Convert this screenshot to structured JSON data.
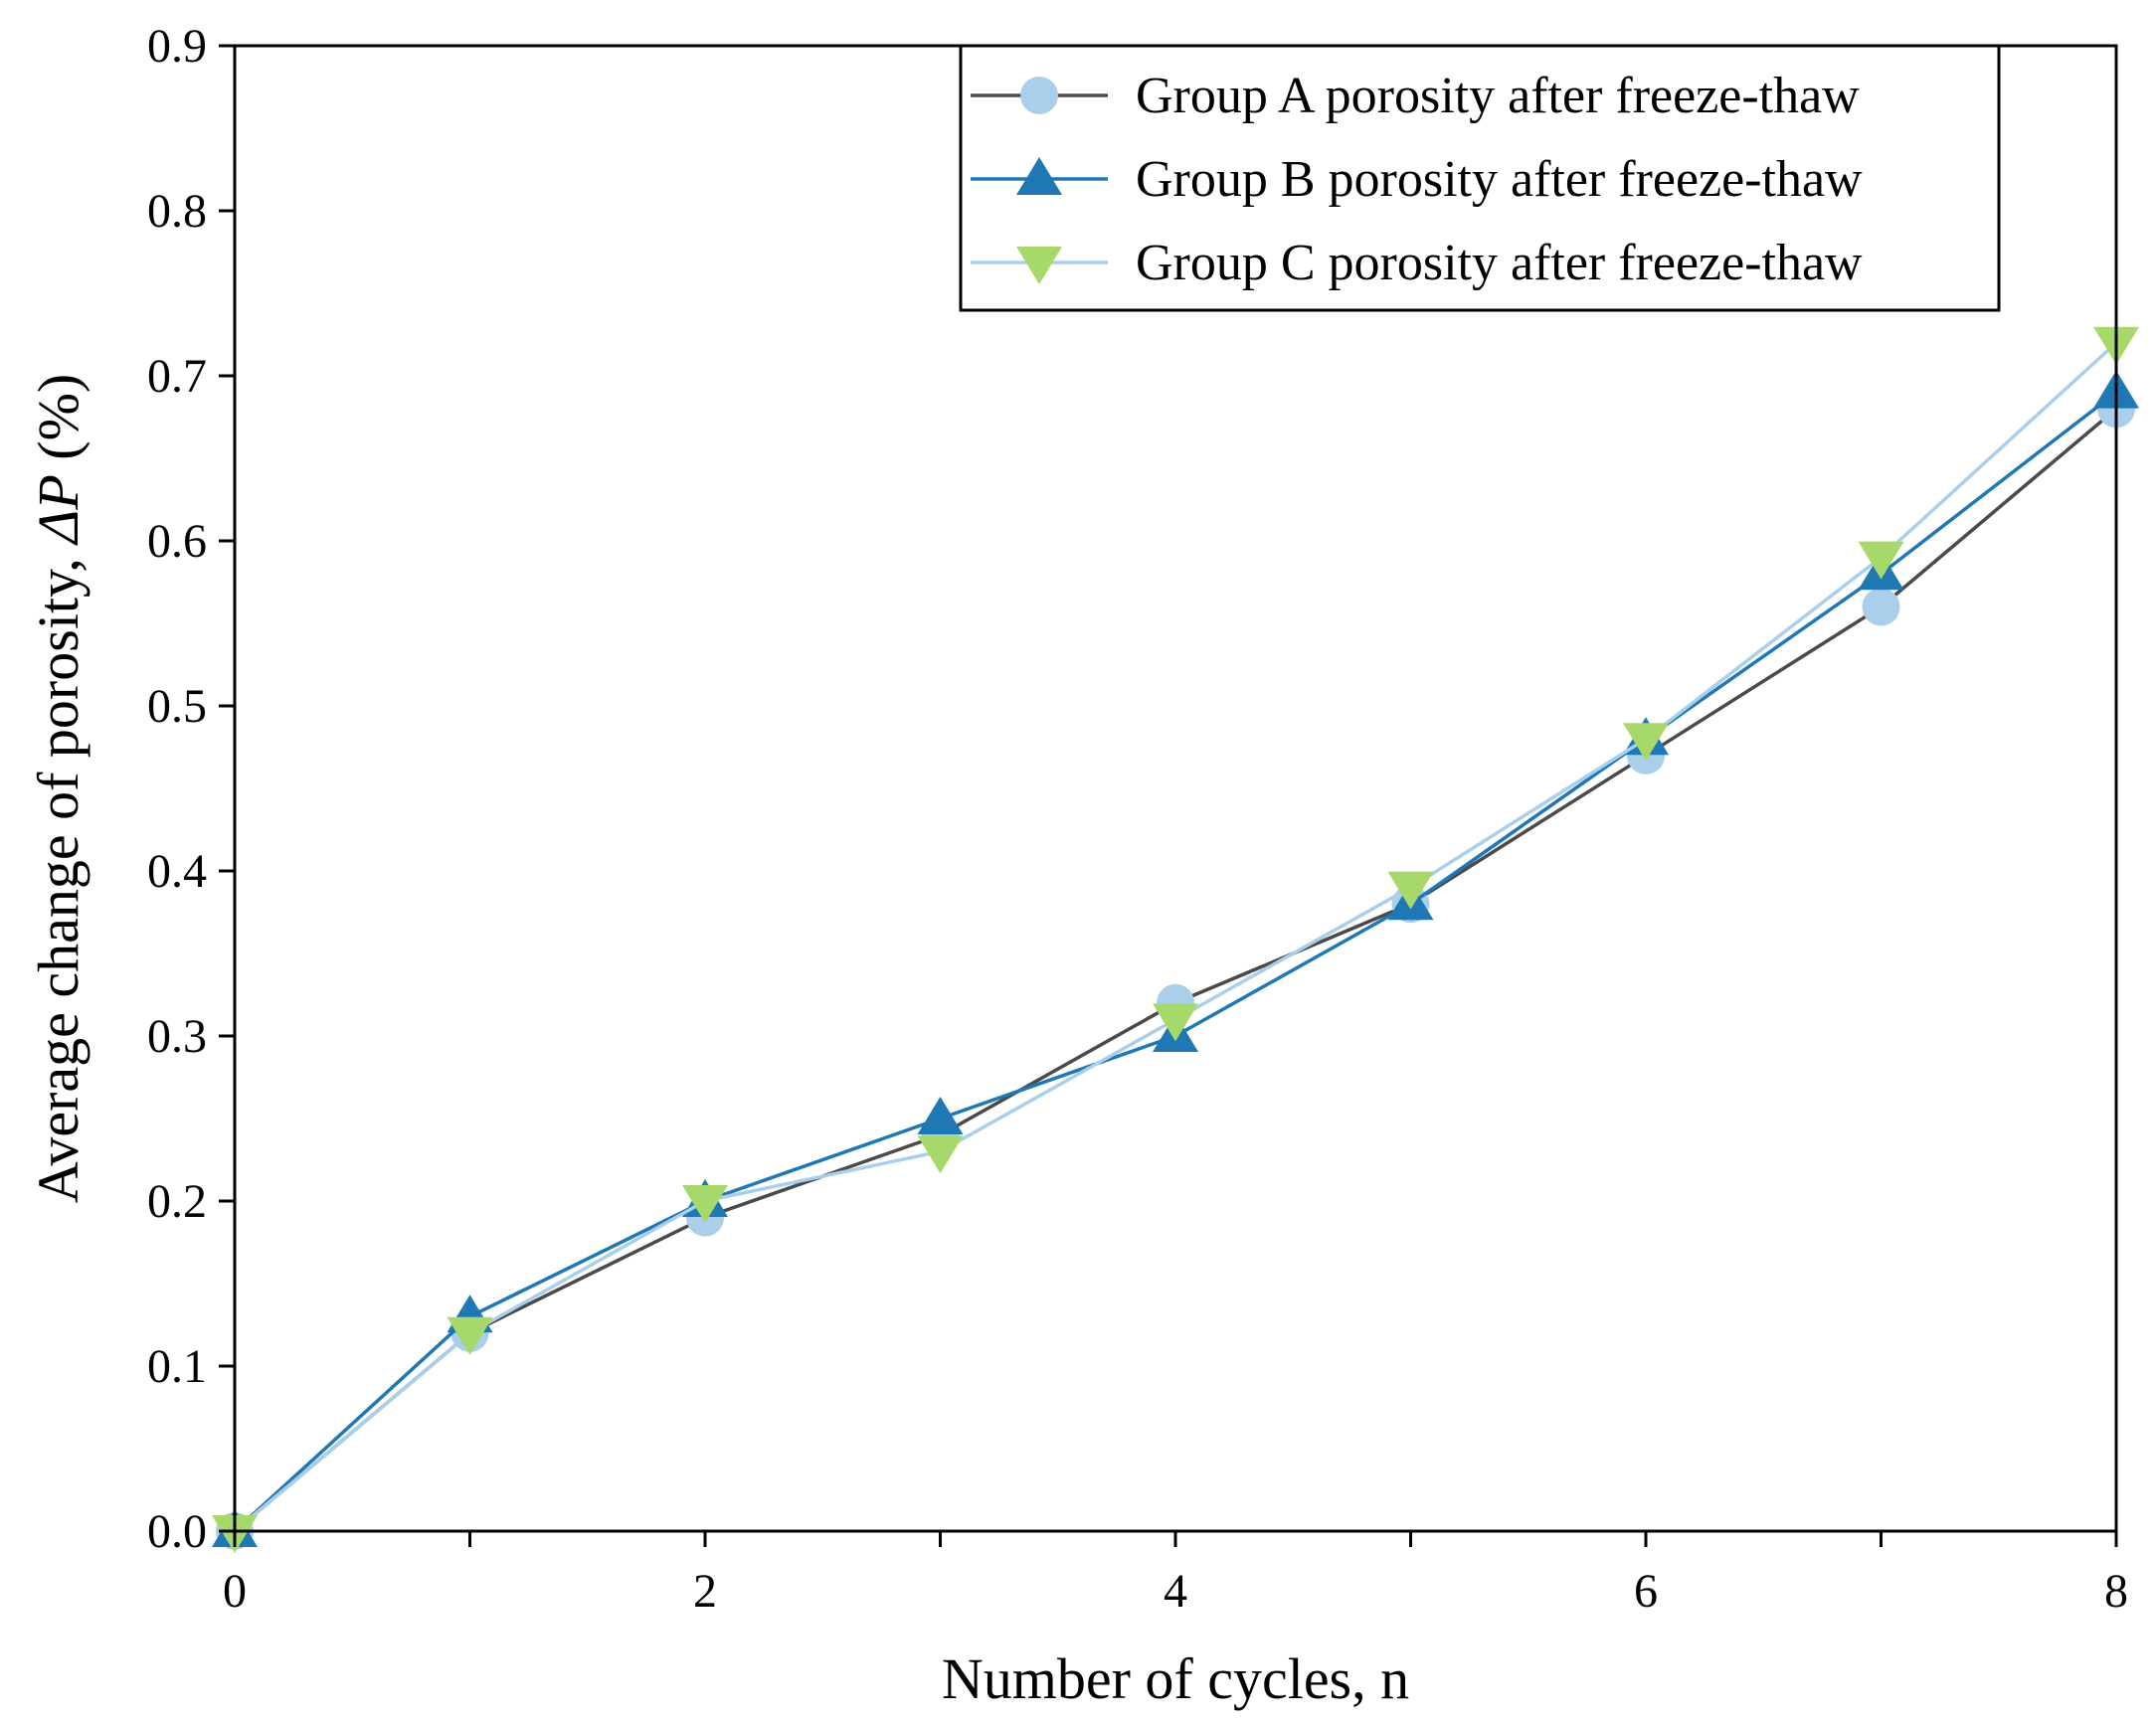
{
  "chart_data": {
    "type": "line",
    "xlabel": "Number of cycles, n",
    "ylabel": "Average change of porosity, ",
    "ylabel_symbol": "ΔP",
    "ylabel_unit": " (%)",
    "xlim": [
      0,
      8
    ],
    "ylim": [
      0,
      0.9
    ],
    "xticks": [
      0,
      1,
      2,
      3,
      4,
      5,
      6,
      7,
      8
    ],
    "xtick_labels": [
      "0",
      "2",
      "4",
      "6",
      "8"
    ],
    "xtick_label_values": [
      0,
      2,
      4,
      6,
      8
    ],
    "yticks": [
      0.0,
      0.1,
      0.2,
      0.3,
      0.4,
      0.5,
      0.6,
      0.7,
      0.8,
      0.9
    ],
    "ytick_labels": [
      "0.0",
      "0.1",
      "0.2",
      "0.3",
      "0.4",
      "0.5",
      "0.6",
      "0.7",
      "0.8",
      "0.9"
    ],
    "grid": false,
    "legend_position": "top-right",
    "x": [
      0,
      1,
      2,
      3,
      4,
      5,
      6,
      7,
      8
    ],
    "series": [
      {
        "name": "Group A porosity after freeze-thaw",
        "marker": "circle",
        "line_color": "#4a4a4a",
        "marker_color": "#a9cfea",
        "values": [
          0.0,
          0.12,
          0.19,
          0.24,
          0.32,
          0.38,
          0.47,
          0.56,
          0.68
        ]
      },
      {
        "name": "Group B porosity after freeze-thaw",
        "marker": "triangle-up",
        "line_color": "#1f77b4",
        "marker_color": "#1f77b4",
        "values": [
          0.0,
          0.13,
          0.2,
          0.25,
          0.3,
          0.38,
          0.48,
          0.58,
          0.69
        ]
      },
      {
        "name": "Group C porosity after freeze-thaw",
        "marker": "triangle-down",
        "line_color": "#a9cfea",
        "marker_color": "#a6d96a",
        "values": [
          0.0,
          0.12,
          0.2,
          0.23,
          0.31,
          0.39,
          0.48,
          0.59,
          0.72
        ]
      }
    ]
  }
}
